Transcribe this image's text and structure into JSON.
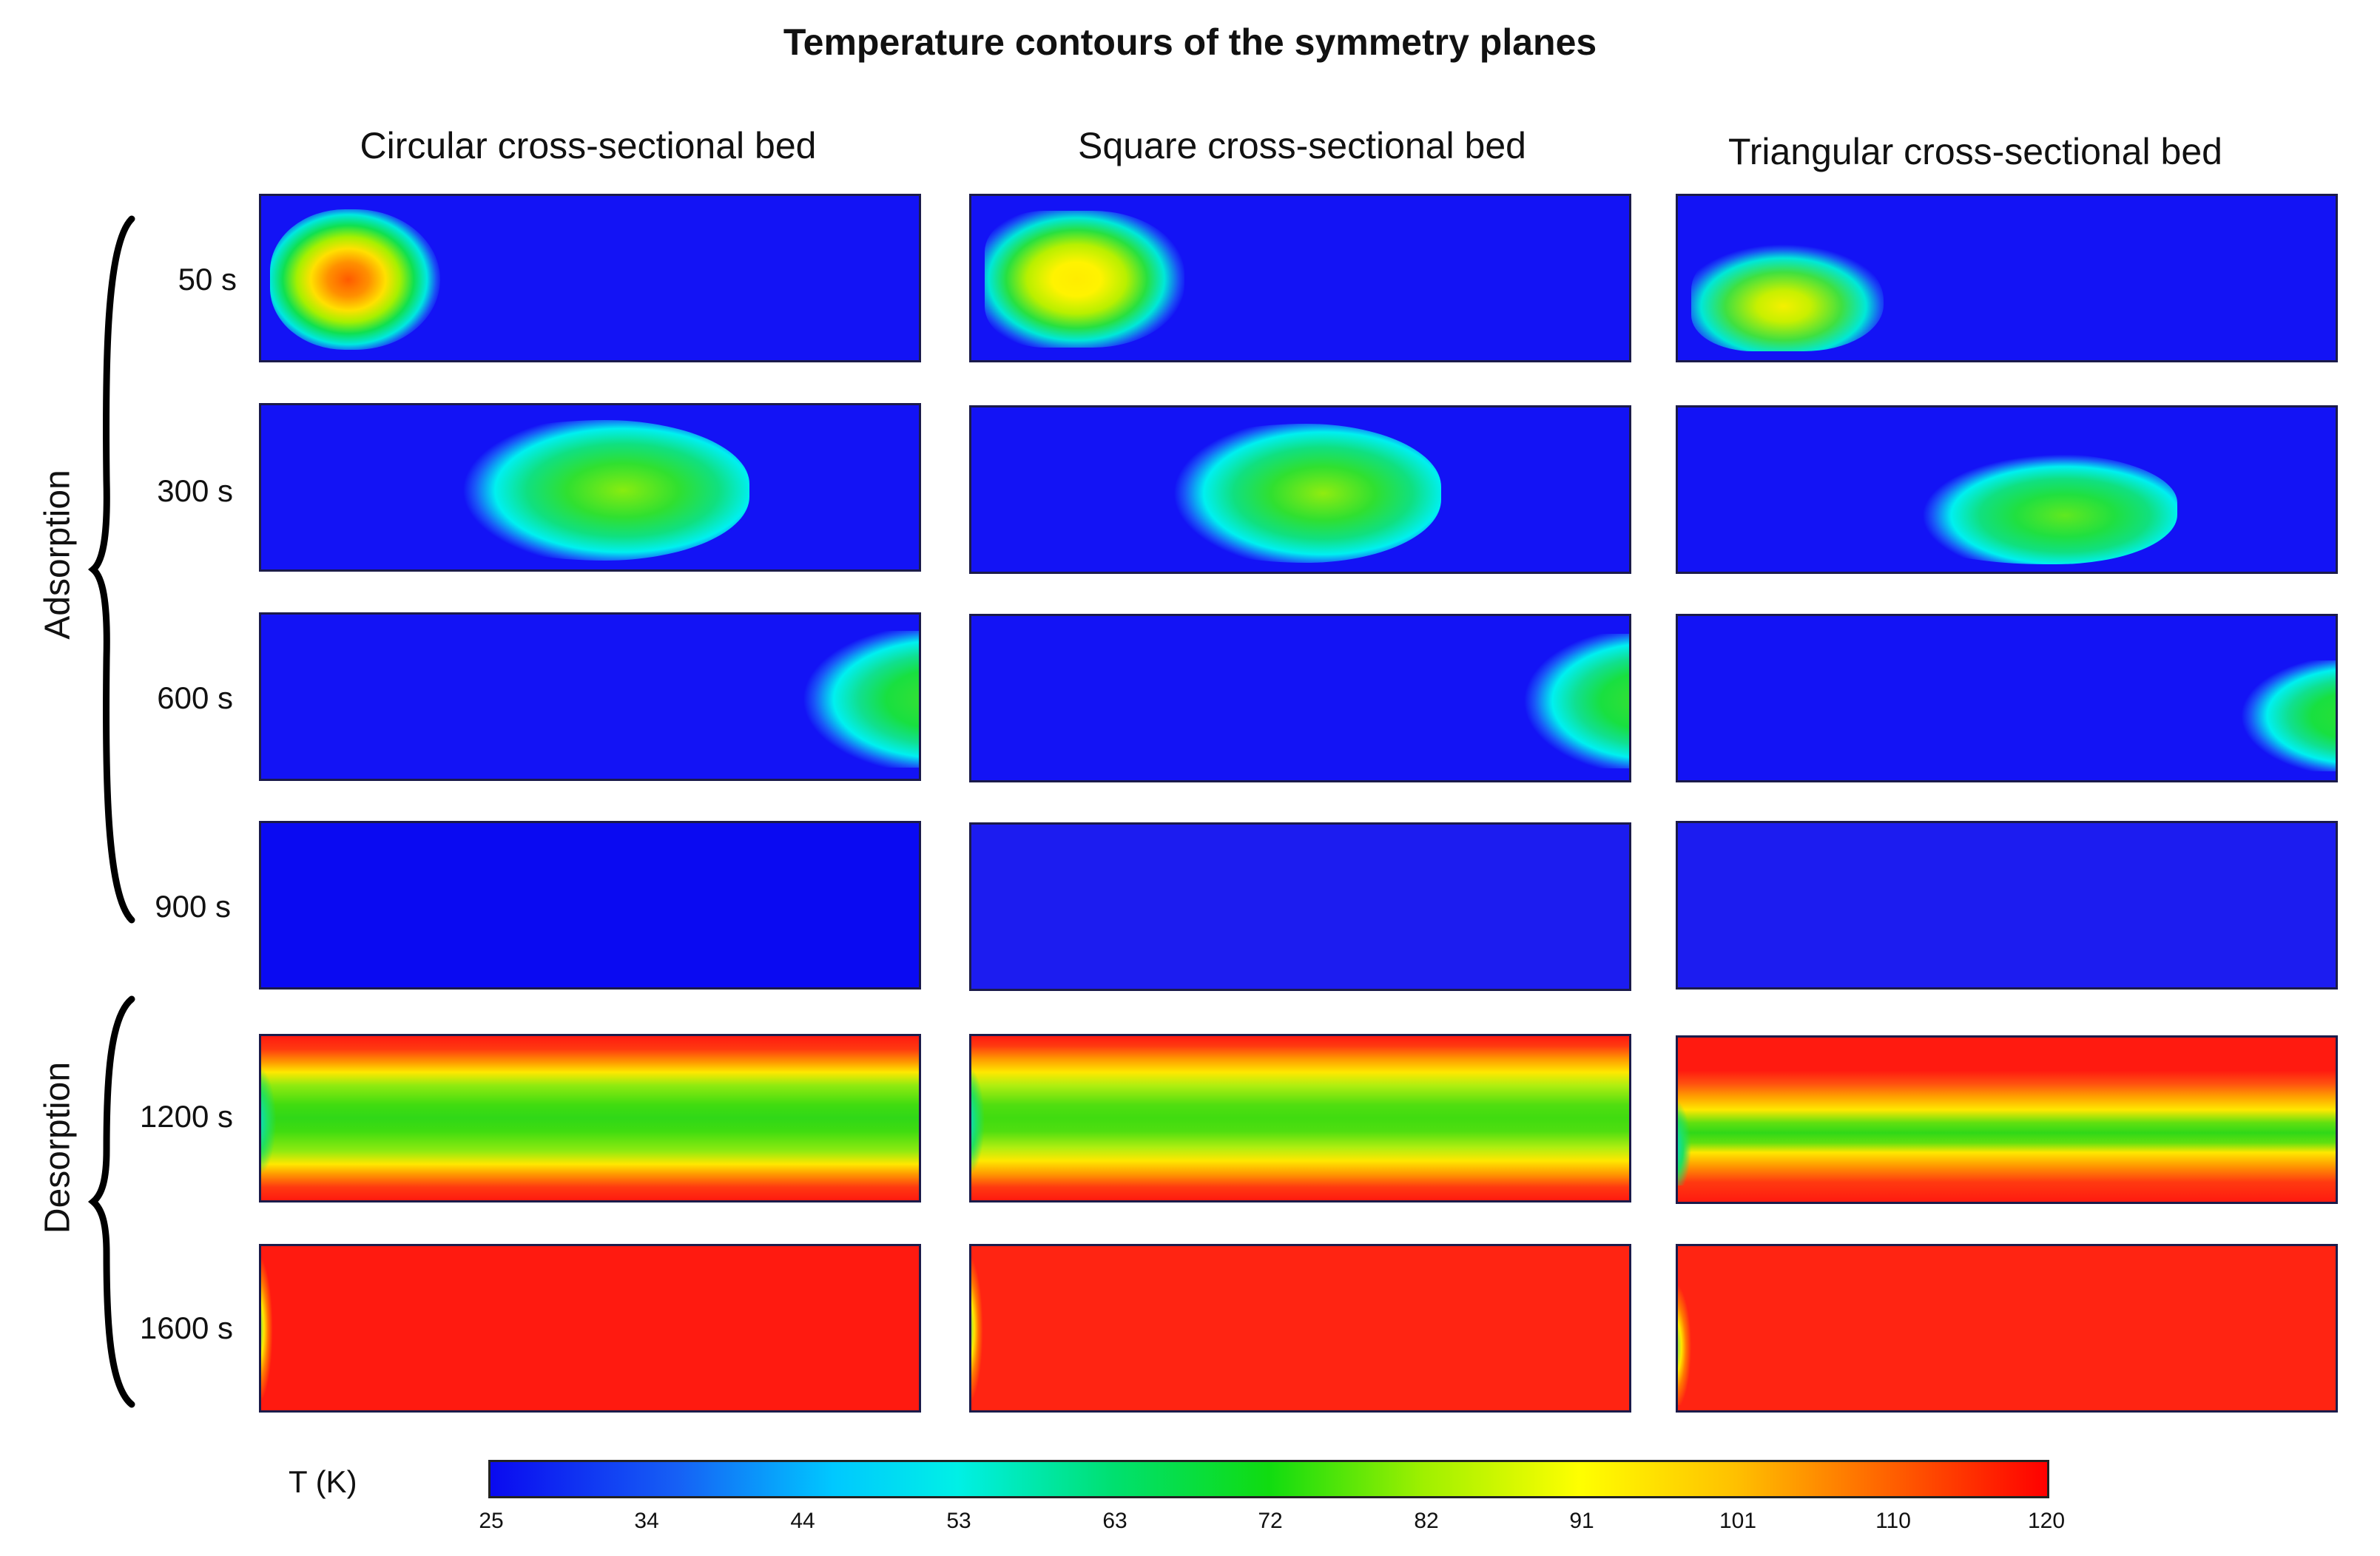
{
  "title": "Temperature contours of the symmetry planes",
  "columns": [
    "Circular cross-sectional bed",
    "Square cross-sectional bed",
    "Triangular cross-sectional bed"
  ],
  "groups": [
    {
      "label": "Adsorption",
      "rows": [
        "50 s",
        "300 s",
        "600 s",
        "900 s"
      ]
    },
    {
      "label": "Desorption",
      "rows": [
        "1200 s",
        "1600 s"
      ]
    }
  ],
  "colorbar": {
    "label": "T (K)",
    "ticks": [
      "25",
      "34",
      "44",
      "53",
      "63",
      "72",
      "82",
      "91",
      "101",
      "110",
      "120"
    ]
  },
  "colors": {
    "cold": "#1313f5",
    "hot": "#ff1a10",
    "border": "#1b1b4a"
  }
}
